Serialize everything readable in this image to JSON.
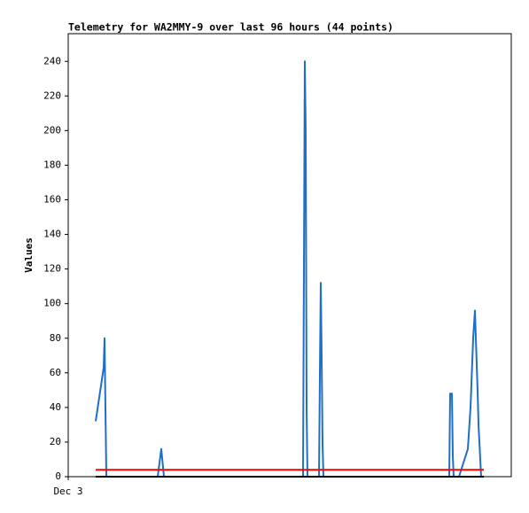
{
  "chart_data": {
    "type": "line",
    "title": "Telemetry for WA2MMY-9 over last 96 hours (44 points)",
    "y_label": "Values",
    "xlim": [
      0,
      96
    ],
    "xticks": [
      {
        "value": 0,
        "label": "Dec 3"
      }
    ],
    "ylim": [
      0,
      256
    ],
    "yticks": [
      0,
      20,
      40,
      60,
      80,
      100,
      120,
      140,
      160,
      180,
      200,
      220,
      240
    ],
    "grid": false,
    "series": [
      {
        "color": "#1f6fc5",
        "x": [
          5.95,
          7.68,
          7.87,
          8.06,
          8.26,
          19.39,
          20.16,
          20.74,
          50.88,
          51.07,
          51.26,
          51.46,
          51.65,
          51.84,
          54.34,
          54.53,
          54.72,
          54.91,
          55.1,
          55.3,
          82.56,
          82.75,
          83.14,
          83.33,
          83.52,
          84.67,
          86.59,
          87.17,
          87.74,
          88.13,
          88.32,
          88.7,
          88.9,
          89.28,
          89.47
        ],
        "values": [
          32,
          63,
          80,
          40,
          0,
          0,
          16,
          0,
          0,
          120,
          240,
          200,
          40,
          0,
          0,
          60,
          112,
          70,
          20,
          0,
          0,
          48,
          48,
          12,
          0,
          0,
          16,
          40,
          80,
          96,
          80,
          50,
          30,
          10,
          0
        ]
      },
      {
        "color": "#ff0000",
        "x": [
          5.95,
          90.05
        ],
        "values": [
          4,
          4
        ]
      },
      {
        "color": "#000000",
        "x": [
          5.95,
          90.05
        ],
        "values": [
          0,
          0
        ]
      }
    ]
  }
}
